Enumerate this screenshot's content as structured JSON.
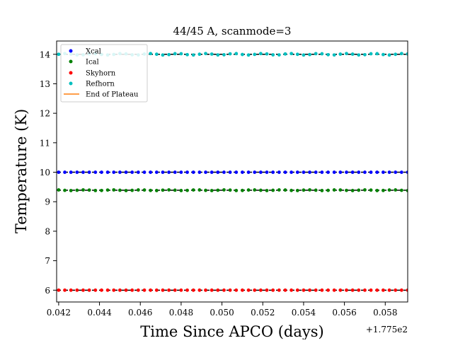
{
  "chart_data": {
    "type": "scatter",
    "title": "44/45 A, scanmode=3",
    "xlabel": "Time Since APCO (days)",
    "ylabel": "Temperature (K)",
    "x_offset_label": "+1.775e2",
    "xlim": [
      0.0419,
      0.0591
    ],
    "ylim": [
      5.6,
      14.45
    ],
    "xticks": [
      0.042,
      0.044,
      0.046,
      0.048,
      0.05,
      0.052,
      0.054,
      0.056,
      0.058
    ],
    "xtick_labels": [
      "0.042",
      "0.044",
      "0.046",
      "0.048",
      "0.050",
      "0.052",
      "0.054",
      "0.056",
      "0.058"
    ],
    "yticks": [
      6,
      7,
      8,
      9,
      10,
      11,
      12,
      13,
      14
    ],
    "ytick_labels": [
      "6",
      "7",
      "8",
      "9",
      "10",
      "11",
      "12",
      "13",
      "14"
    ],
    "grid": false,
    "legend_position": "top-left",
    "x_start": 0.042,
    "x_end": 0.0591,
    "x_step": 0.0003,
    "series": [
      {
        "name": "Xcal",
        "color": "#0000ff",
        "value": 10.0,
        "jitter": 0.0
      },
      {
        "name": "Ical",
        "color": "#008000",
        "value": 9.39,
        "jitter": 0.012
      },
      {
        "name": "Skyhorn",
        "color": "#ff0000",
        "value": 6.0,
        "jitter": 0.0
      },
      {
        "name": "Refhorn",
        "color": "#00bfbf",
        "value": 14.0,
        "jitter": 0.025
      }
    ],
    "reference_lines": [
      {
        "y": 14.0,
        "style": "dashed",
        "color": "#000000"
      },
      {
        "y": 10.0,
        "style": "dashed",
        "color": "#000000"
      },
      {
        "y": 9.39,
        "style": "dashed",
        "color": "#000000"
      },
      {
        "y": 6.0,
        "style": "dashed",
        "color": "#000000"
      }
    ],
    "end_of_plateau": {
      "name": "End of Plateau",
      "color": "#ff7f0e"
    }
  }
}
